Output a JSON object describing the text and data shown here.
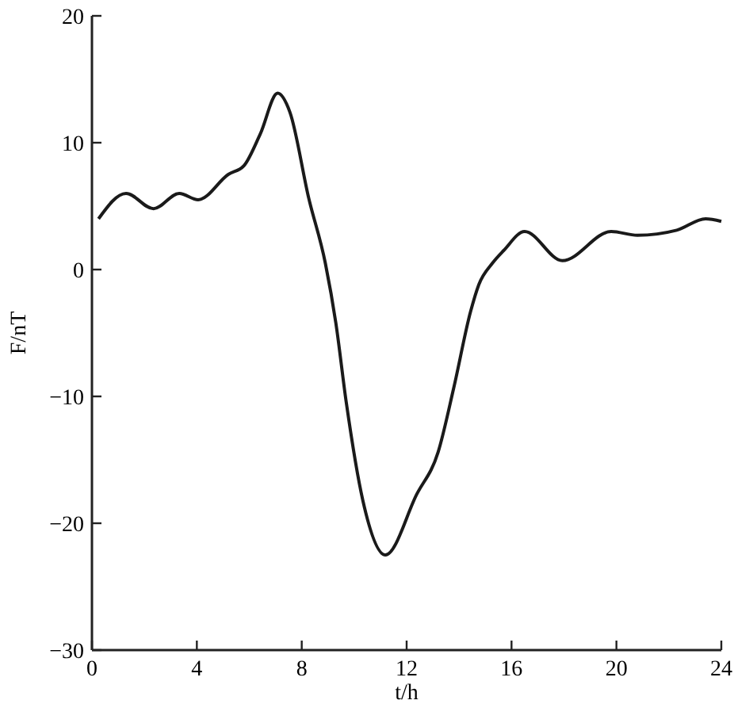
{
  "chart_data": {
    "type": "line",
    "xlabel": "t/h",
    "ylabel": "F/nT",
    "x": [
      0.25,
      1.3,
      2.35,
      3.33,
      4.05,
      5.2,
      5.8,
      6.42,
      7.08,
      7.55,
      8.27,
      8.9,
      9.3,
      9.7,
      10.33,
      11.19,
      12.39,
      13.2,
      13.8,
      14.44,
      14.75,
      15.27,
      15.7,
      16.5,
      17.94,
      19.8,
      20.8,
      22.3,
      23.4,
      24
    ],
    "series": [
      {
        "color": "#1a1a1a",
        "values": [
          4.0,
          6.0,
          4.8,
          6.0,
          5.5,
          7.5,
          8.2,
          10.7,
          13.9,
          12.4,
          5.6,
          0.5,
          -4.2,
          -10.5,
          -18.2,
          -22.5,
          -17.7,
          -14.4,
          -9.3,
          -3.3,
          -1.2,
          0.5,
          1.5,
          3.0,
          0.7,
          3.0,
          2.7,
          3.1,
          4.0,
          3.8
        ]
      }
    ],
    "xlim": [
      0,
      24
    ],
    "xticks": [
      0,
      4,
      8,
      12,
      16,
      20,
      24
    ],
    "ylim": [
      -30,
      20
    ],
    "yticks": [
      -30,
      -20,
      -10,
      0,
      10,
      20
    ],
    "grid": false,
    "marker": "none",
    "line_style": "solid"
  }
}
